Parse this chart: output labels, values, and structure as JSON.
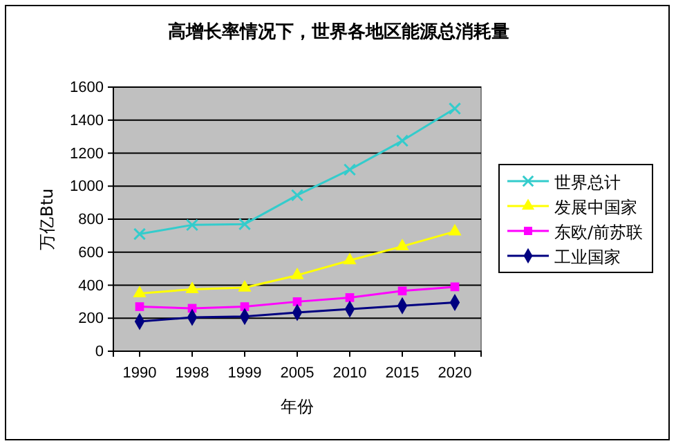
{
  "chart_data": {
    "type": "line",
    "title": "高增长率情况下，世界各地区能源总消耗量",
    "xlabel": "年份",
    "ylabel": "万亿Btu",
    "categories": [
      "1990",
      "1998",
      "1999",
      "2005",
      "2010",
      "2015",
      "2020"
    ],
    "series": [
      {
        "name": "世界总计",
        "color": "#33cccc",
        "marker": "cross",
        "values": [
          710,
          765,
          770,
          945,
          1100,
          1275,
          1470
        ]
      },
      {
        "name": "发展中国家",
        "color": "#ffff00",
        "marker": "triangle",
        "values": [
          350,
          375,
          385,
          460,
          550,
          635,
          725
        ]
      },
      {
        "name": "东欧/前苏联",
        "color": "#ff00ff",
        "marker": "square",
        "values": [
          270,
          260,
          270,
          300,
          325,
          365,
          390
        ]
      },
      {
        "name": "工业国家",
        "color": "#000080",
        "marker": "diamond",
        "values": [
          180,
          205,
          210,
          235,
          255,
          275,
          295
        ]
      }
    ],
    "ylim": [
      0,
      1600
    ],
    "yticks": [
      0,
      200,
      400,
      600,
      800,
      1000,
      1200,
      1400,
      1600
    ],
    "grid": "y",
    "legend": "right"
  }
}
